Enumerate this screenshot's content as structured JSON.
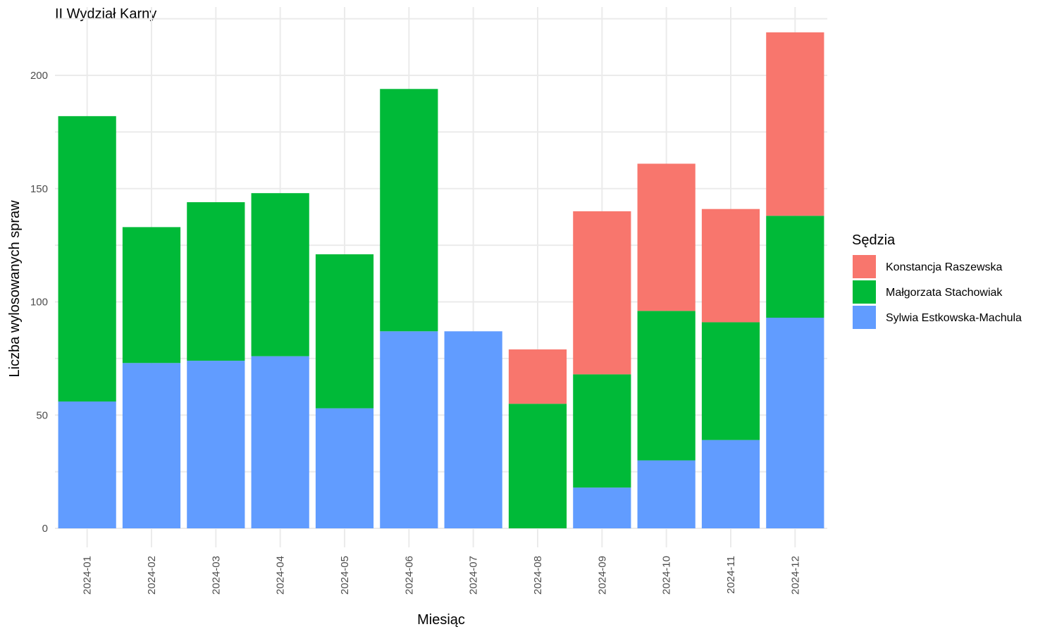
{
  "chart_data": {
    "type": "bar",
    "stacked": true,
    "title": "II Wydział Karny",
    "xlabel": "Miesiąc",
    "ylabel": "Liczba wylosowanych spraw",
    "ylim": [
      0,
      225
    ],
    "yticks": [
      0,
      50,
      100,
      150,
      200
    ],
    "grid": true,
    "legend": {
      "title": "Sędzia",
      "position": "right"
    },
    "categories": [
      "2024-01",
      "2024-02",
      "2024-03",
      "2024-04",
      "2024-05",
      "2024-06",
      "2024-07",
      "2024-08",
      "2024-09",
      "2024-10",
      "2024-11",
      "2024-12"
    ],
    "series": [
      {
        "name": "Sylwia Estkowska-Machula",
        "color": "#619CFF",
        "values": [
          56,
          73,
          74,
          76,
          53,
          87,
          87,
          0,
          18,
          30,
          39,
          93
        ]
      },
      {
        "name": "Małgorzata Stachowiak",
        "color": "#00BA38",
        "values": [
          126,
          60,
          70,
          72,
          68,
          107,
          0,
          55,
          50,
          66,
          52,
          45
        ]
      },
      {
        "name": "Konstancja Raszewska",
        "color": "#F8766D",
        "values": [
          0,
          0,
          0,
          0,
          0,
          0,
          0,
          24,
          72,
          65,
          50,
          81
        ]
      }
    ],
    "legend_order": [
      "Konstancja Raszewska",
      "Małgorzata Stachowiak",
      "Sylwia Estkowska-Machula"
    ]
  }
}
